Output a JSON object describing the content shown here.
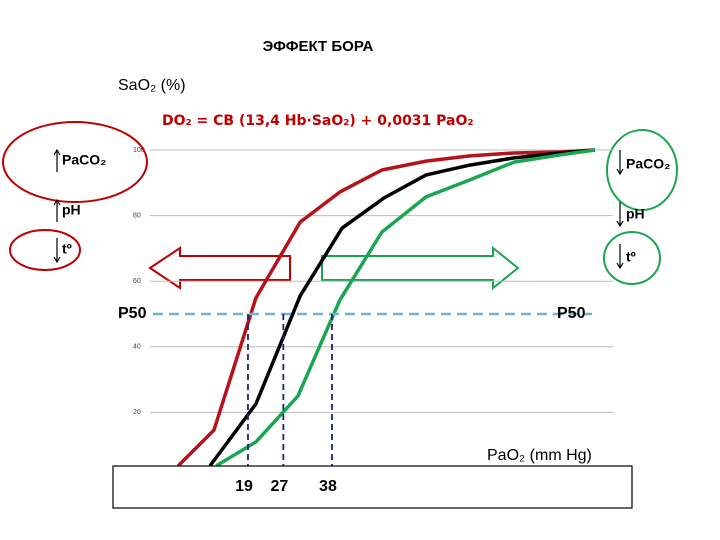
{
  "chart_data": {
    "type": "line",
    "title": "ЭФФЕКТ БОРА",
    "y_label": "SaO₂ (%)",
    "x_label": "PaO₂ (mm Hg)",
    "formula": "DO₂ = CB (13,4 Hb·SaO₂) + 0,0031 PaO₂",
    "xlim": [
      0,
      100
    ],
    "ylim": [
      0,
      100
    ],
    "yticks": [
      20,
      40,
      60,
      80,
      100
    ],
    "grid": true,
    "series": [
      {
        "color": "#b5121b",
        "x": [
          3.2,
          11.3,
          20.8,
          30.8,
          39.8,
          49.3,
          59.3,
          69.2,
          79.2,
          89.6,
          97.5
        ],
        "values": [
          3.7,
          14.6,
          54.9,
          78.0,
          87.2,
          93.9,
          96.6,
          98.2,
          99.1,
          99.4,
          100
        ]
      },
      {
        "color": "#000000",
        "x": [
          10.4,
          20.8,
          30.8,
          40.3,
          49.8,
          59.3,
          69.2,
          79.2,
          89.6,
          97.5
        ],
        "values": [
          3.7,
          22.6,
          55.5,
          76.2,
          85.4,
          92.4,
          95.4,
          97.6,
          99.1,
          100
        ]
      },
      {
        "color": "#1aa550",
        "x": [
          11.8,
          20.8,
          30.3,
          39.8,
          49.3,
          59.3,
          69.2,
          79.2,
          89.6,
          97.5
        ],
        "values": [
          3.7,
          11.0,
          25.0,
          54.3,
          75.0,
          85.7,
          90.9,
          96.3,
          98.5,
          100
        ]
      }
    ],
    "p50": 50,
    "p50_label": "P50",
    "p50_values": [
      19,
      27,
      38
    ],
    "left_factors": [
      "PaCO₂",
      "pH",
      "tº"
    ],
    "right_factors": [
      "PaCO₂",
      "pH",
      "tº"
    ]
  }
}
